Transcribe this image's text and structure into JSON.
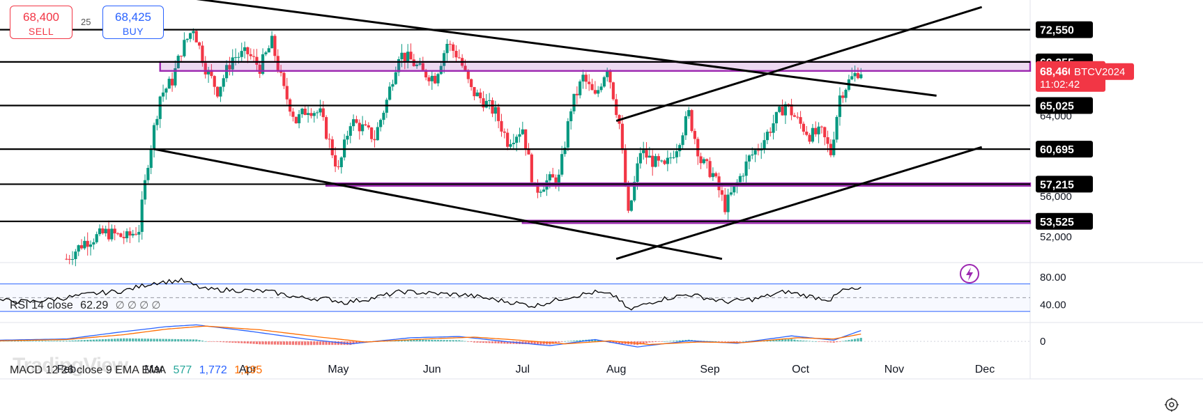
{
  "trade": {
    "sell_price": "68,400",
    "sell_label": "SELL",
    "buy_price": "68,425",
    "buy_label": "BUY",
    "spread": "25"
  },
  "watermark": "TradingView",
  "rsi_legend": {
    "name": "RSI 14 close",
    "value": "62.29",
    "glyphs": "∅ ∅ ∅ ∅"
  },
  "macd_legend": {
    "name": "MACD 12 26 close 9 EMA EMA",
    "histogram": "577",
    "macd": "1,772",
    "signal": "1,195"
  },
  "colors": {
    "up": "#089981",
    "down": "#f23645",
    "purple": "#9c27b0",
    "rsi_band": "#2962ff",
    "macd_line": "#2962ff",
    "signal_line": "#ff6d00",
    "axis_label_bg": "#f23645"
  },
  "chart_data": {
    "type": "candlestick",
    "symbol": "BTCV2024",
    "last_price": "68,460",
    "countdown": "11:02:42",
    "ylim": [
      49500,
      75500
    ],
    "y_ticks": [
      52000,
      56000,
      64000
    ],
    "y_tick_labels": [
      "52,000",
      "56,000",
      "64,000"
    ],
    "horizontal_levels": [
      {
        "value": 72550,
        "label": "72,550"
      },
      {
        "value": 69355,
        "label": "69,355"
      },
      {
        "value": 65025,
        "label": "65,025"
      },
      {
        "value": 60695,
        "label": "60,695"
      },
      {
        "value": 57215,
        "label": "57,215"
      },
      {
        "value": 53525,
        "label": "53,525"
      }
    ],
    "x_range": [
      "2024-01-10",
      "2024-12-16"
    ],
    "x_tick_labels": [
      {
        "date": "2024-02-01",
        "label": "Feb"
      },
      {
        "date": "2024-03-01",
        "label": "Mar"
      },
      {
        "date": "2024-04-01",
        "label": "Apr"
      },
      {
        "date": "2024-05-01",
        "label": "May"
      },
      {
        "date": "2024-06-01",
        "label": "Jun"
      },
      {
        "date": "2024-07-01",
        "label": "Jul"
      },
      {
        "date": "2024-08-01",
        "label": "Aug"
      },
      {
        "date": "2024-09-01",
        "label": "Sep"
      },
      {
        "date": "2024-10-01",
        "label": "Oct"
      },
      {
        "date": "2024-11-01",
        "label": "Nov"
      },
      {
        "date": "2024-12-01",
        "label": "Dec"
      }
    ],
    "purple_zones": [
      {
        "start": "2024-03-03",
        "end": "2024-12-16",
        "low": 68460,
        "high": 69355
      },
      {
        "start": "2024-04-27",
        "end": "2024-12-16",
        "low": 57050,
        "high": 57300
      },
      {
        "start": "2024-07-01",
        "end": "2024-12-16",
        "low": 53350,
        "high": 53600
      }
    ],
    "trend_lines": [
      {
        "p1": [
          "2024-03-15",
          75600
        ],
        "p2": [
          "2024-11-15",
          66000
        ]
      },
      {
        "p1": [
          "2024-03-01",
          60700
        ],
        "p2": [
          "2024-09-05",
          49800
        ]
      },
      {
        "p1": [
          "2024-08-01",
          63500
        ],
        "p2": [
          "2024-11-30",
          74800
        ]
      },
      {
        "p1": [
          "2024-08-01",
          49800
        ],
        "p2": [
          "2024-11-30",
          60900
        ]
      }
    ],
    "candles_note": "approximate daily path read from the chart",
    "close_path": [
      [
        "2024-02-01",
        49800
      ],
      [
        "2024-02-07",
        51500
      ],
      [
        "2024-02-14",
        52400
      ],
      [
        "2024-02-21",
        51900
      ],
      [
        "2024-02-25",
        52800
      ],
      [
        "2024-02-28",
        59500
      ],
      [
        "2024-03-03",
        66000
      ],
      [
        "2024-03-07",
        67500
      ],
      [
        "2024-03-10",
        70500
      ],
      [
        "2024-03-14",
        72800
      ],
      [
        "2024-03-18",
        68800
      ],
      [
        "2024-03-22",
        66500
      ],
      [
        "2024-03-27",
        69800
      ],
      [
        "2024-04-01",
        70200
      ],
      [
        "2024-04-05",
        68800
      ],
      [
        "2024-04-09",
        71300
      ],
      [
        "2024-04-13",
        66500
      ],
      [
        "2024-04-17",
        63500
      ],
      [
        "2024-04-21",
        64800
      ],
      [
        "2024-04-25",
        64200
      ],
      [
        "2024-05-01",
        58500
      ],
      [
        "2024-05-05",
        63500
      ],
      [
        "2024-05-09",
        62800
      ],
      [
        "2024-05-13",
        61800
      ],
      [
        "2024-05-17",
        65500
      ],
      [
        "2024-05-21",
        70200
      ],
      [
        "2024-05-25",
        69500
      ],
      [
        "2024-05-29",
        68300
      ],
      [
        "2024-06-02",
        67800
      ],
      [
        "2024-06-06",
        71200
      ],
      [
        "2024-06-10",
        69800
      ],
      [
        "2024-06-14",
        66500
      ],
      [
        "2024-06-18",
        65500
      ],
      [
        "2024-06-22",
        64300
      ],
      [
        "2024-06-26",
        61500
      ],
      [
        "2024-07-01",
        62800
      ],
      [
        "2024-07-05",
        56500
      ],
      [
        "2024-07-09",
        57500
      ],
      [
        "2024-07-13",
        57800
      ],
      [
        "2024-07-17",
        64800
      ],
      [
        "2024-07-21",
        67800
      ],
      [
        "2024-07-25",
        65800
      ],
      [
        "2024-07-29",
        69000
      ],
      [
        "2024-08-02",
        63200
      ],
      [
        "2024-08-05",
        54000
      ],
      [
        "2024-08-09",
        60500
      ],
      [
        "2024-08-13",
        59500
      ],
      [
        "2024-08-17",
        58800
      ],
      [
        "2024-08-21",
        61000
      ],
      [
        "2024-08-25",
        64200
      ],
      [
        "2024-08-29",
        59500
      ],
      [
        "2024-09-02",
        58200
      ],
      [
        "2024-09-06",
        55000
      ],
      [
        "2024-09-10",
        57300
      ],
      [
        "2024-09-14",
        59800
      ],
      [
        "2024-09-18",
        61200
      ],
      [
        "2024-09-22",
        63300
      ],
      [
        "2024-09-26",
        65200
      ],
      [
        "2024-09-30",
        63500
      ],
      [
        "2024-10-04",
        62100
      ],
      [
        "2024-10-08",
        62300
      ],
      [
        "2024-10-11",
        60300
      ],
      [
        "2024-10-14",
        66000
      ],
      [
        "2024-10-17",
        67400
      ],
      [
        "2024-10-20",
        68400
      ],
      [
        "2024-10-21",
        68460
      ]
    ],
    "rsi": {
      "ylim": [
        15,
        100
      ],
      "bands": [
        70,
        30
      ],
      "ticks": [
        {
          "value": 80,
          "label": "80.00"
        },
        {
          "value": 40,
          "label": "40.00"
        }
      ],
      "path": [
        [
          "2024-01-10",
          46
        ],
        [
          "2024-01-20",
          44
        ],
        [
          "2024-02-01",
          50
        ],
        [
          "2024-02-10",
          56
        ],
        [
          "2024-02-20",
          60
        ],
        [
          "2024-03-01",
          72
        ],
        [
          "2024-03-10",
          75
        ],
        [
          "2024-03-18",
          62
        ],
        [
          "2024-03-28",
          61
        ],
        [
          "2024-04-08",
          59
        ],
        [
          "2024-04-18",
          50
        ],
        [
          "2024-04-28",
          48
        ],
        [
          "2024-05-03",
          43
        ],
        [
          "2024-05-12",
          49
        ],
        [
          "2024-05-22",
          59
        ],
        [
          "2024-06-02",
          56
        ],
        [
          "2024-06-12",
          54
        ],
        [
          "2024-06-22",
          47
        ],
        [
          "2024-07-05",
          38
        ],
        [
          "2024-07-15",
          50
        ],
        [
          "2024-07-25",
          58
        ],
        [
          "2024-08-01",
          52
        ],
        [
          "2024-08-05",
          32
        ],
        [
          "2024-08-15",
          47
        ],
        [
          "2024-08-25",
          55
        ],
        [
          "2024-09-06",
          44
        ],
        [
          "2024-09-16",
          48
        ],
        [
          "2024-09-26",
          59
        ],
        [
          "2024-10-04",
          52
        ],
        [
          "2024-10-11",
          47
        ],
        [
          "2024-10-15",
          61
        ],
        [
          "2024-10-21",
          62.29
        ]
      ]
    },
    "macd": {
      "ylim": [
        -1800,
        3200
      ],
      "ticks": [
        {
          "value": 0,
          "label": "0"
        }
      ],
      "histogram": 577,
      "macd": 1772,
      "signal": 1195,
      "macd_path": [
        [
          "2024-01-10",
          200
        ],
        [
          "2024-02-01",
          400
        ],
        [
          "2024-02-20",
          1600
        ],
        [
          "2024-03-05",
          2400
        ],
        [
          "2024-03-15",
          2700
        ],
        [
          "2024-04-01",
          1700
        ],
        [
          "2024-04-20",
          400
        ],
        [
          "2024-05-05",
          -400
        ],
        [
          "2024-05-25",
          600
        ],
        [
          "2024-06-10",
          800
        ],
        [
          "2024-06-25",
          0
        ],
        [
          "2024-07-10",
          -700
        ],
        [
          "2024-07-25",
          300
        ],
        [
          "2024-08-08",
          -900
        ],
        [
          "2024-08-25",
          100
        ],
        [
          "2024-09-10",
          -300
        ],
        [
          "2024-09-28",
          900
        ],
        [
          "2024-10-12",
          200
        ],
        [
          "2024-10-21",
          1772
        ]
      ],
      "signal_path": [
        [
          "2024-01-10",
          100
        ],
        [
          "2024-02-01",
          300
        ],
        [
          "2024-02-20",
          1100
        ],
        [
          "2024-03-05",
          2000
        ],
        [
          "2024-03-18",
          2500
        ],
        [
          "2024-04-05",
          1900
        ],
        [
          "2024-04-25",
          700
        ],
        [
          "2024-05-10",
          -100
        ],
        [
          "2024-05-30",
          400
        ],
        [
          "2024-06-15",
          700
        ],
        [
          "2024-06-30",
          200
        ],
        [
          "2024-07-15",
          -400
        ],
        [
          "2024-07-30",
          100
        ],
        [
          "2024-08-12",
          -500
        ],
        [
          "2024-08-28",
          -100
        ],
        [
          "2024-09-12",
          -200
        ],
        [
          "2024-09-30",
          600
        ],
        [
          "2024-10-12",
          400
        ],
        [
          "2024-10-21",
          1195
        ]
      ]
    }
  }
}
